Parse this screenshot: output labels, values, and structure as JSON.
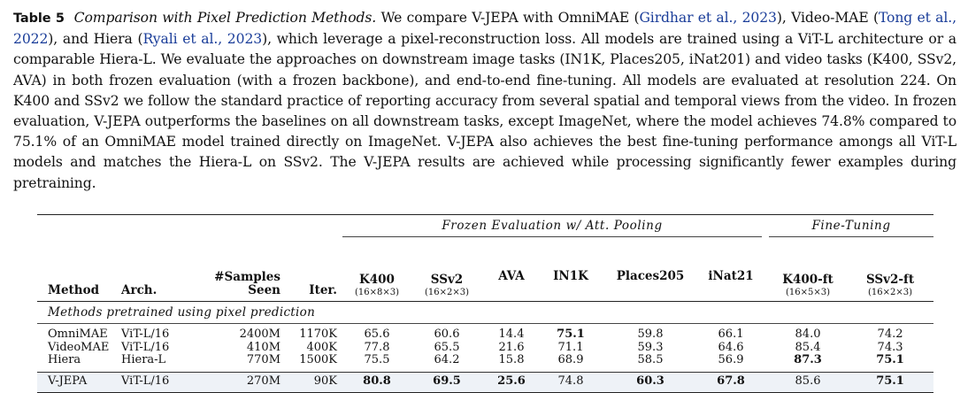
{
  "caption": {
    "label": "Table 5",
    "title": "Comparison with Pixel Prediction Methods.",
    "s1": " We compare V-JEPA with OmniMAE (",
    "cite1": "Girdhar et al., 2023",
    "s2": "), Video-MAE (",
    "cite2": "Tong et al., 2022",
    "s3": "), and Hiera (",
    "cite3": "Ryali et al., 2023",
    "s4": "), which leverage a pixel-reconstruction loss. All models are trained using a ViT-L architecture or a comparable Hiera-L. We evaluate the approaches on downstream image tasks (IN1K, Places205, iNat201) and video tasks (K400, SSv2, AVA) in both frozen evaluation (with a frozen backbone), and end-to-end fine-tuning. All models are evaluated at resolution 224. On K400 and SSv2 we follow the standard practice of reporting accuracy from several spatial and temporal views from the video. In frozen evaluation, V-JEPA outperforms the baselines on all downstream tasks, except ImageNet, where the model achieves 74.8% compared to 75.1% of an OmniMAE model trained directly on ImageNet. V-JEPA also achieves the best fine-tuning performance amongs all ViT-L models and matches the Hiera-L on SSv2. The V-JEPA results are achieved while processing significantly fewer examples during pretraining."
  },
  "table": {
    "group_frozen": "Frozen Evaluation w/ Att. Pooling",
    "group_finetune": "Fine-Tuning",
    "headers": {
      "method": "Method",
      "arch": "Arch.",
      "samples_l1": "#Samples",
      "samples_l2": "Seen",
      "iter": "Iter.",
      "k400": "K400",
      "k400_sub": "(16×8×3)",
      "ssv2": "SSv2",
      "ssv2_sub": "(16×2×3)",
      "ava": "AVA",
      "in1k": "IN1K",
      "places": "Places205",
      "inat": "iNat21",
      "k400ft": "K400-ft",
      "k400ft_sub": "(16×5×3)",
      "ssv2ft": "SSv2-ft",
      "ssv2ft_sub": "(16×2×3)"
    },
    "section": "Methods pretrained using pixel prediction",
    "rows": [
      {
        "method": "OmniMAE",
        "arch": "ViT-L/16",
        "samples": "2400M",
        "iter": "1170K",
        "k400": "65.6",
        "ssv2": "60.6",
        "ava": "14.4",
        "in1k": "75.1",
        "places": "59.8",
        "inat": "66.1",
        "k400ft": "84.0",
        "ssv2ft": "74.2"
      },
      {
        "method": "VideoMAE",
        "arch": "ViT-L/16",
        "samples": "410M",
        "iter": "400K",
        "k400": "77.8",
        "ssv2": "65.5",
        "ava": "21.6",
        "in1k": "71.1",
        "places": "59.3",
        "inat": "64.6",
        "k400ft": "85.4",
        "ssv2ft": "74.3"
      },
      {
        "method": "Hiera",
        "arch": "Hiera-L",
        "samples": "770M",
        "iter": "1500K",
        "k400": "75.5",
        "ssv2": "64.2",
        "ava": "15.8",
        "in1k": "68.9",
        "places": "58.5",
        "inat": "56.9",
        "k400ft": "87.3",
        "ssv2ft": "75.1"
      }
    ],
    "vjepa": {
      "method": "V-JEPA",
      "arch": "ViT-L/16",
      "samples": "270M",
      "iter": "90K",
      "k400": "80.8",
      "ssv2": "69.5",
      "ava": "25.6",
      "in1k": "74.8",
      "places": "60.3",
      "inat": "67.8",
      "k400ft": "85.6",
      "ssv2ft": "75.1"
    }
  }
}
